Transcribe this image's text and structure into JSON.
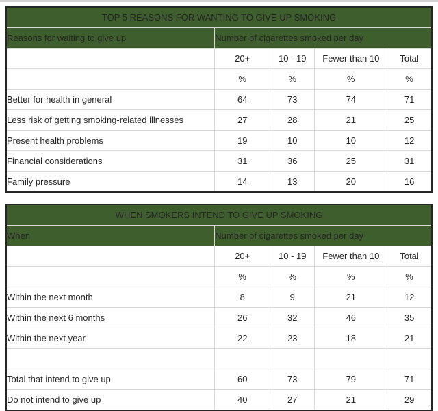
{
  "colors": {
    "header_background": "#3e5e2d",
    "header_text": "#ffffff",
    "body_text": "#262626",
    "grid_line": "#d8d8d8",
    "outer_border": "#262626",
    "page_background": "#ffffff"
  },
  "tables": [
    {
      "title": "TOP 5 REASONS FOR WANTING TO GIVE UP SMOKING",
      "row_header_label": "Reasons for waiting to give up",
      "group_header": "Number of cigarettes smoked per day",
      "columns": [
        "20+",
        "10 - 19",
        "Fewer than 10",
        "Total"
      ],
      "units": [
        "%",
        "%",
        "%",
        "%"
      ],
      "rows": [
        {
          "label": "Better for health in general",
          "values": [
            64,
            73,
            74,
            71
          ]
        },
        {
          "label": "Less risk of getting smoking-related illnesses",
          "values": [
            27,
            28,
            21,
            25
          ]
        },
        {
          "label": "Present health problems",
          "values": [
            19,
            10,
            10,
            12
          ]
        },
        {
          "label": "Financial considerations",
          "values": [
            31,
            36,
            25,
            31
          ]
        },
        {
          "label": "Family pressure",
          "values": [
            14,
            13,
            20,
            16
          ]
        }
      ]
    },
    {
      "title": "WHEN SMOKERS INTEND TO GIVE UP SMOKING",
      "row_header_label": "When",
      "group_header": "Number of cigarettes smoked per day",
      "columns": [
        "20+",
        "10 - 19",
        "Fewer than 10",
        "Total"
      ],
      "units": [
        "%",
        "%",
        "%",
        "%"
      ],
      "rows": [
        {
          "label": "Within the next month",
          "values": [
            8,
            9,
            21,
            12
          ]
        },
        {
          "label": "Within the next 6 months",
          "values": [
            26,
            32,
            46,
            35
          ]
        },
        {
          "label": "Within the next year",
          "values": [
            22,
            23,
            18,
            21
          ]
        },
        {
          "label": "",
          "values": [
            "",
            "",
            "",
            ""
          ]
        },
        {
          "label": "Total that intend to give up",
          "values": [
            60,
            73,
            79,
            71
          ]
        },
        {
          "label": "Do not intend to give up",
          "values": [
            40,
            27,
            21,
            29
          ]
        }
      ]
    }
  ]
}
